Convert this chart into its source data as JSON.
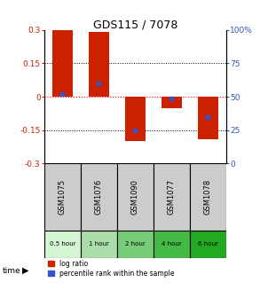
{
  "title": "GDS115 / 7078",
  "samples": [
    "GSM1075",
    "GSM1076",
    "GSM1090",
    "GSM1077",
    "GSM1078"
  ],
  "time_labels": [
    "0.5 hour",
    "1 hour",
    "2 hour",
    "4 hour",
    "6 hour"
  ],
  "time_colors": [
    "#d4f5d4",
    "#aaddaa",
    "#77cc77",
    "#44bb44",
    "#22aa22"
  ],
  "log_ratios": [
    0.3,
    0.29,
    -0.2,
    -0.05,
    -0.19
  ],
  "percentile_ranks": [
    52,
    60,
    25,
    49,
    35
  ],
  "ylim": [
    -0.3,
    0.3
  ],
  "right_ylim": [
    0,
    100
  ],
  "yticks_left": [
    -0.3,
    -0.15,
    0,
    0.15,
    0.3
  ],
  "yticks_right": [
    0,
    25,
    50,
    75,
    100
  ],
  "bar_color": "#cc2200",
  "percentile_color": "#3355cc",
  "bar_width": 0.55,
  "background_color": "#ffffff",
  "left_tick_color": "#cc2200",
  "right_tick_color": "#3355bb",
  "sample_bg_color": "#cccccc"
}
